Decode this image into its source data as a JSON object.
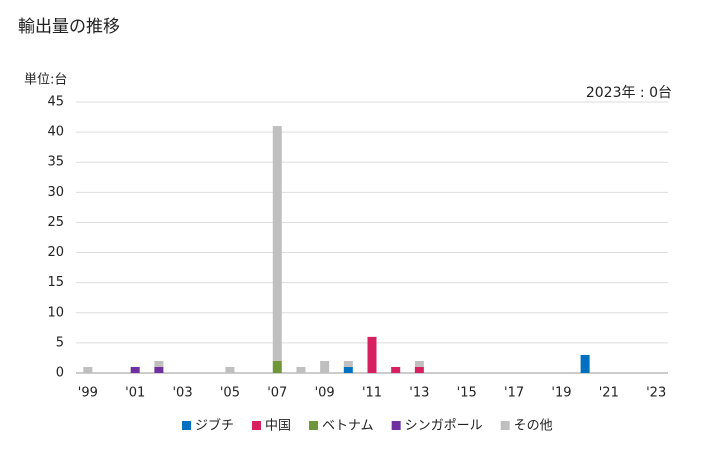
{
  "chart_data": {
    "type": "bar",
    "stacked": true,
    "title": "輸出量の推移",
    "unit_label": "単位:台",
    "annotation": "2023年 : 0台",
    "categories": [
      "'99",
      null,
      "'01",
      null,
      "'03",
      null,
      "'05",
      null,
      "'07",
      null,
      "'09",
      null,
      "'11",
      null,
      "'13",
      null,
      "'15",
      null,
      "'17",
      null,
      "'19",
      null,
      "'21",
      null,
      "'23"
    ],
    "series": [
      {
        "name": "ジブチ",
        "color": "#0070c0",
        "values": [
          0,
          0,
          0,
          0,
          0,
          0,
          0,
          0,
          0,
          0,
          0,
          1,
          0,
          0,
          0,
          0,
          0,
          0,
          0,
          0,
          0,
          3,
          0,
          0,
          0
        ]
      },
      {
        "name": "中国",
        "color": "#d6205f",
        "values": [
          0,
          0,
          0,
          0,
          0,
          0,
          0,
          0,
          0,
          0,
          0,
          0,
          6,
          1,
          1,
          0,
          0,
          0,
          0,
          0,
          0,
          0,
          0,
          0,
          0
        ]
      },
      {
        "name": "ベトナム",
        "color": "#70963a",
        "values": [
          0,
          0,
          0,
          0,
          0,
          0,
          0,
          0,
          2,
          0,
          0,
          0,
          0,
          0,
          0,
          0,
          0,
          0,
          0,
          0,
          0,
          0,
          0,
          0,
          0
        ]
      },
      {
        "name": "シンガポール",
        "color": "#7030a0",
        "values": [
          0,
          0,
          1,
          1,
          0,
          0,
          0,
          0,
          0,
          0,
          0,
          0,
          0,
          0,
          0,
          0,
          0,
          0,
          0,
          0,
          0,
          0,
          0,
          0,
          0
        ]
      },
      {
        "name": "その他",
        "color": "#bfbfbf",
        "values": [
          1,
          0,
          0,
          1,
          0,
          0,
          1,
          0,
          39,
          1,
          2,
          1,
          0,
          0,
          1,
          0,
          0,
          0,
          0,
          0,
          0,
          0,
          0,
          0,
          0
        ]
      }
    ],
    "ylim": [
      0,
      45
    ],
    "yticks": [
      0,
      5,
      10,
      15,
      20,
      25,
      30,
      35,
      40,
      45
    ],
    "grid": true,
    "legend": "bottom"
  }
}
